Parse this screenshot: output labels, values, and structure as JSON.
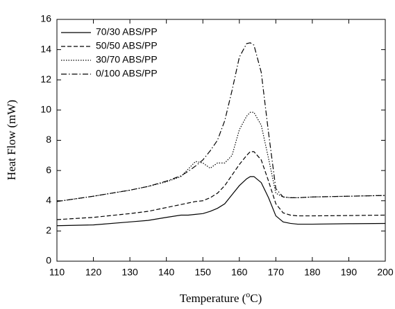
{
  "chart_data": {
    "type": "line",
    "xlabel": [
      "Temperature (",
      "o",
      "C)"
    ],
    "ylabel": "Heat Flow (mW)",
    "x": [
      110,
      120,
      130,
      135,
      140,
      144,
      146,
      148,
      150,
      152,
      154,
      156,
      158,
      160,
      162,
      163,
      164,
      166,
      168,
      170,
      172,
      174,
      176,
      180,
      190,
      200
    ],
    "series": [
      {
        "name": "70/30 ABS/PP",
        "color": "#000000",
        "dash": "solid",
        "values": [
          2.35,
          2.4,
          2.6,
          2.7,
          2.9,
          3.05,
          3.05,
          3.1,
          3.15,
          3.3,
          3.5,
          3.8,
          4.4,
          5.0,
          5.45,
          5.6,
          5.6,
          5.2,
          4.2,
          3.0,
          2.6,
          2.5,
          2.45,
          2.45,
          2.48,
          2.5
        ]
      },
      {
        "name": "50/50 ABS/PP",
        "color": "#000000",
        "dash": "dashed",
        "values": [
          2.75,
          2.9,
          3.15,
          3.3,
          3.55,
          3.75,
          3.85,
          3.95,
          4.0,
          4.2,
          4.5,
          5.0,
          5.7,
          6.4,
          7.0,
          7.25,
          7.25,
          6.7,
          5.3,
          3.8,
          3.2,
          3.05,
          3.0,
          3.0,
          3.02,
          3.05
        ]
      },
      {
        "name": "30/70 ABS/PP",
        "color": "#000000",
        "dash": "dotted",
        "values": [
          3.95,
          4.3,
          4.7,
          4.95,
          5.25,
          5.6,
          6.1,
          6.6,
          6.5,
          6.15,
          6.5,
          6.5,
          7.0,
          8.7,
          9.6,
          9.85,
          9.85,
          9.0,
          6.8,
          4.5,
          4.25,
          4.2,
          4.2,
          4.25,
          4.3,
          4.35
        ]
      },
      {
        "name": "0/100 ABS/PP",
        "color": "#000000",
        "dash": "dashdot",
        "values": [
          3.95,
          4.3,
          4.7,
          4.95,
          5.3,
          5.65,
          5.95,
          6.3,
          6.7,
          7.3,
          8.0,
          9.3,
          11.3,
          13.5,
          14.4,
          14.45,
          14.3,
          12.5,
          8.5,
          4.8,
          4.25,
          4.2,
          4.2,
          4.25,
          4.3,
          4.35
        ]
      }
    ],
    "xlim": [
      110,
      200
    ],
    "xticks": [
      110,
      120,
      130,
      140,
      150,
      160,
      170,
      180,
      190,
      200
    ],
    "ylim": [
      0,
      16
    ],
    "yticks": [
      0,
      2,
      4,
      6,
      8,
      10,
      12,
      14,
      16
    ],
    "legend": "upper-left",
    "grid": false
  }
}
